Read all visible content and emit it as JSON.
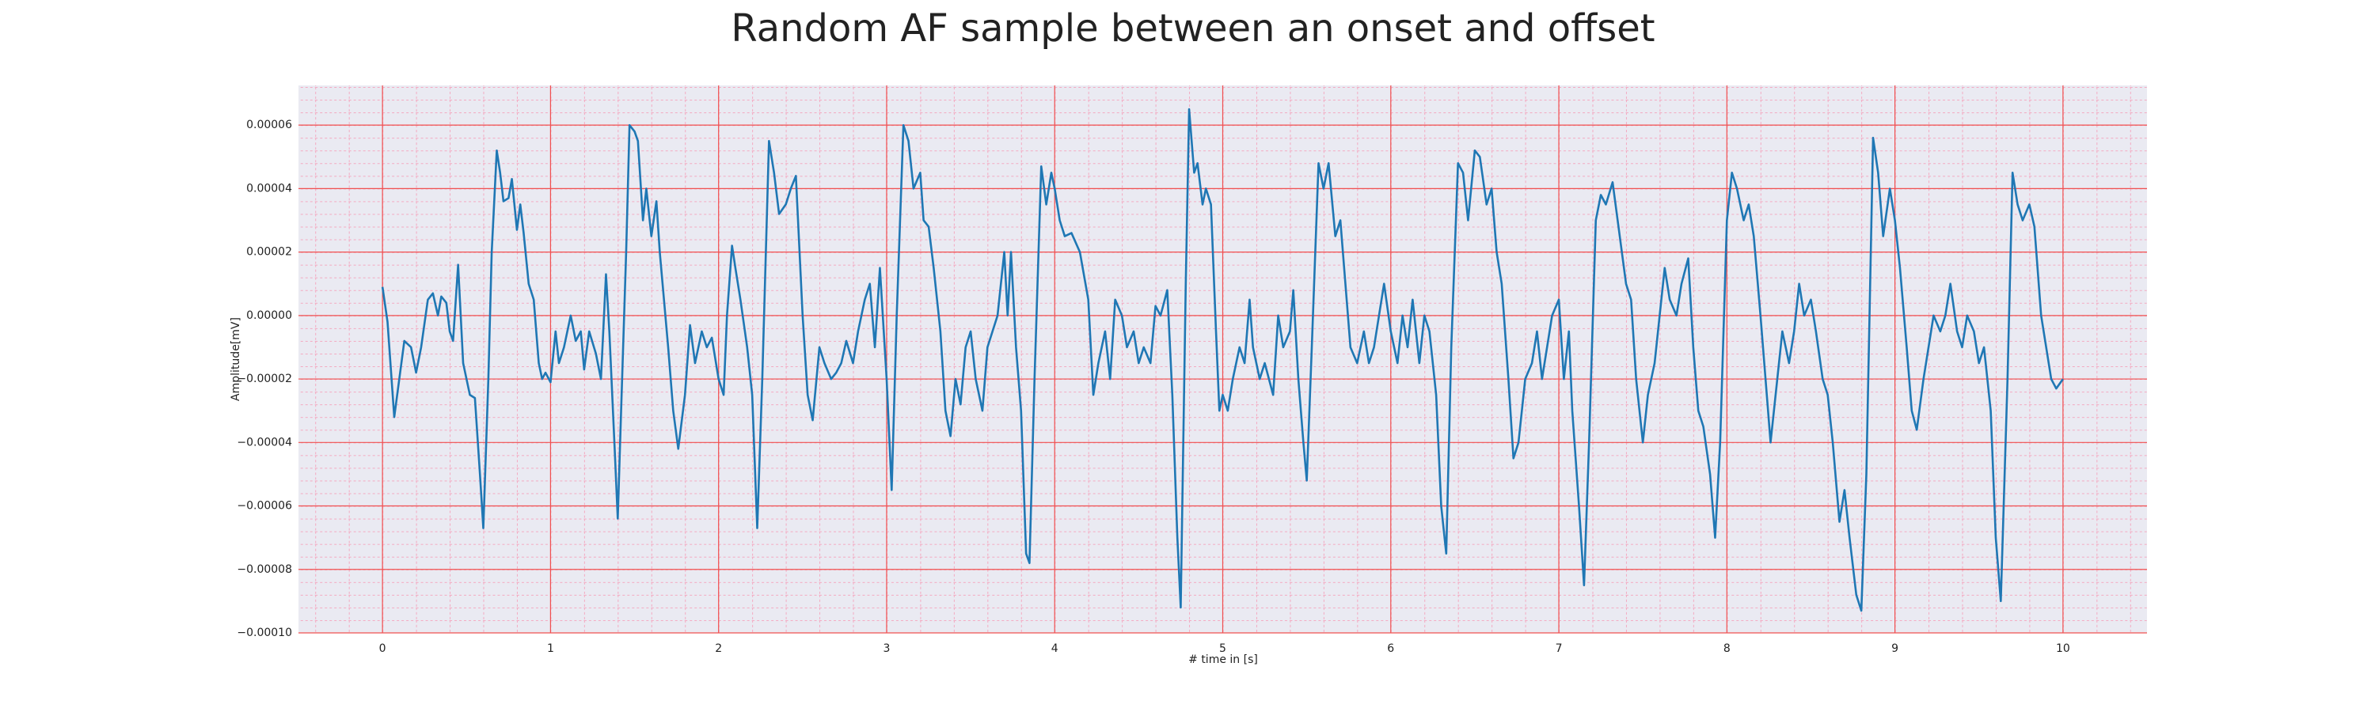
{
  "chart_data": {
    "type": "line",
    "title": "Random AF sample between an onset and offset",
    "xlabel": "# time in [s]",
    "ylabel": "Amplitude[mV]",
    "color": "#1f77b4",
    "grid": true,
    "minor_grid": true,
    "xlim": [
      -0.5,
      10.5
    ],
    "xticks": [
      0,
      1,
      2,
      3,
      4,
      5,
      6,
      7,
      8,
      9,
      10
    ],
    "ylim": [
      -0.0001,
      7.25e-05
    ],
    "yticks": [
      {
        "value": -0.0001,
        "label": "−0.00010"
      },
      {
        "value": -8e-05,
        "label": "−0.00008"
      },
      {
        "value": -6e-05,
        "label": "−0.00006"
      },
      {
        "value": -4e-05,
        "label": "−0.00004"
      },
      {
        "value": -2e-05,
        "label": "−0.00002"
      },
      {
        "value": 0,
        "label": "0.00000"
      },
      2e-05,
      4e-05,
      6e-05
    ],
    "x": [
      0,
      0.03,
      0.07,
      0.1,
      0.13,
      0.17,
      0.2,
      0.23,
      0.27,
      0.3,
      0.33,
      0.35,
      0.38,
      0.4,
      0.42,
      0.45,
      0.48,
      0.52,
      0.55,
      0.58,
      0.6,
      0.63,
      0.65,
      0.68,
      0.7,
      0.72,
      0.75,
      0.77,
      0.8,
      0.82,
      0.84,
      0.87,
      0.9,
      0.93,
      0.95,
      0.97,
      1.0,
      1.03,
      1.05,
      1.08,
      1.12,
      1.15,
      1.18,
      1.2,
      1.23,
      1.27,
      1.3,
      1.33,
      1.35,
      1.38,
      1.4,
      1.42,
      1.45,
      1.47,
      1.5,
      1.52,
      1.55,
      1.57,
      1.6,
      1.63,
      1.65,
      1.7,
      1.73,
      1.76,
      1.8,
      1.83,
      1.86,
      1.9,
      1.93,
      1.96,
      2.0,
      2.03,
      2.05,
      2.08,
      2.1,
      2.13,
      2.17,
      2.2,
      2.23,
      2.26,
      2.3,
      2.33,
      2.36,
      2.4,
      2.43,
      2.46,
      2.5,
      2.53,
      2.56,
      2.6,
      2.63,
      2.67,
      2.7,
      2.73,
      2.76,
      2.8,
      2.83,
      2.87,
      2.9,
      2.93,
      2.96,
      3.0,
      3.03,
      3.06,
      3.1,
      3.13,
      3.16,
      3.2,
      3.22,
      3.25,
      3.28,
      3.32,
      3.35,
      3.38,
      3.41,
      3.44,
      3.47,
      3.5,
      3.53,
      3.57,
      3.6,
      3.63,
      3.66,
      3.7,
      3.72,
      3.74,
      3.77,
      3.8,
      3.83,
      3.85,
      3.88,
      3.92,
      3.95,
      3.98,
      4.0,
      4.03,
      4.06,
      4.1,
      4.15,
      4.2,
      4.23,
      4.26,
      4.3,
      4.33,
      4.36,
      4.4,
      4.43,
      4.47,
      4.5,
      4.53,
      4.57,
      4.6,
      4.63,
      4.67,
      4.7,
      4.73,
      4.75,
      4.78,
      4.8,
      4.83,
      4.85,
      4.88,
      4.9,
      4.93,
      4.96,
      4.98,
      5.0,
      5.03,
      5.06,
      5.1,
      5.13,
      5.16,
      5.18,
      5.22,
      5.25,
      5.3,
      5.33,
      5.36,
      5.4,
      5.42,
      5.45,
      5.48,
      5.5,
      5.53,
      5.57,
      5.6,
      5.63,
      5.67,
      5.7,
      5.73,
      5.76,
      5.8,
      5.84,
      5.87,
      5.9,
      5.93,
      5.96,
      6.0,
      6.04,
      6.07,
      6.1,
      6.13,
      6.17,
      6.2,
      6.23,
      6.27,
      6.3,
      6.33,
      6.36,
      6.4,
      6.43,
      6.46,
      6.5,
      6.53,
      6.57,
      6.6,
      6.63,
      6.66,
      6.7,
      6.73,
      6.76,
      6.8,
      6.84,
      6.87,
      6.9,
      6.93,
      6.96,
      7.0,
      7.03,
      7.06,
      7.08,
      7.12,
      7.15,
      7.18,
      7.22,
      7.25,
      7.28,
      7.32,
      7.35,
      7.4,
      7.43,
      7.46,
      7.5,
      7.53,
      7.57,
      7.6,
      7.63,
      7.66,
      7.7,
      7.73,
      7.77,
      7.8,
      7.83,
      7.86,
      7.9,
      7.93,
      7.96,
      8.0,
      8.03,
      8.06,
      8.1,
      8.13,
      8.16,
      8.2,
      8.23,
      8.26,
      8.3,
      8.33,
      8.37,
      8.4,
      8.43,
      8.46,
      8.5,
      8.53,
      8.57,
      8.6,
      8.63,
      8.67,
      8.7,
      8.73,
      8.77,
      8.8,
      8.83,
      8.87,
      8.9,
      8.93,
      8.97,
      9.0,
      9.03,
      9.07,
      9.1,
      9.13,
      9.17,
      9.2,
      9.23,
      9.27,
      9.3,
      9.33,
      9.37,
      9.4,
      9.43,
      9.47,
      9.5,
      9.53,
      9.57,
      9.6,
      9.63,
      9.67,
      9.7,
      9.73,
      9.76,
      9.8,
      9.83,
      9.87,
      9.9,
      9.93,
      9.96,
      10.0
    ],
    "values": [
      9e-06,
      -2e-06,
      -3.2e-05,
      -2e-05,
      -8e-06,
      -1e-05,
      -1.8e-05,
      -1e-05,
      5e-06,
      7e-06,
      0,
      6e-06,
      4e-06,
      -5e-06,
      -8e-06,
      1.6e-05,
      -1.5e-05,
      -2.5e-05,
      -2.6e-05,
      -5e-05,
      -6.7e-05,
      -2e-05,
      2e-05,
      5.2e-05,
      4.5e-05,
      3.6e-05,
      3.7e-05,
      4.3e-05,
      2.7e-05,
      3.5e-05,
      2.6e-05,
      1e-05,
      5e-06,
      -1.5e-05,
      -2e-05,
      -1.8e-05,
      -2.1e-05,
      -5e-06,
      -1.5e-05,
      -1e-05,
      0,
      -8e-06,
      -5e-06,
      -1.7e-05,
      -5e-06,
      -1.2e-05,
      -2e-05,
      1.3e-05,
      -5e-06,
      -4e-05,
      -6.4e-05,
      -3e-05,
      2e-05,
      6e-05,
      5.8e-05,
      5.5e-05,
      3e-05,
      4e-05,
      2.5e-05,
      3.6e-05,
      2e-05,
      -1e-05,
      -3e-05,
      -4.2e-05,
      -2.5e-05,
      -3e-06,
      -1.5e-05,
      -5e-06,
      -1e-05,
      -7e-06,
      -2e-05,
      -2.5e-05,
      0,
      2.2e-05,
      1.5e-05,
      5e-06,
      -1e-05,
      -2.5e-05,
      -6.7e-05,
      -2e-05,
      5.5e-05,
      4.5e-05,
      3.2e-05,
      3.5e-05,
      4e-05,
      4.4e-05,
      0,
      -2.5e-05,
      -3.3e-05,
      -1e-05,
      -1.5e-05,
      -2e-05,
      -1.8e-05,
      -1.5e-05,
      -8e-06,
      -1.5e-05,
      -5e-06,
      5e-06,
      1e-05,
      -1e-05,
      1.5e-05,
      -2e-05,
      -5.5e-05,
      0,
      6e-05,
      5.5e-05,
      4e-05,
      4.5e-05,
      3e-05,
      2.8e-05,
      1.5e-05,
      -5e-06,
      -3e-05,
      -3.8e-05,
      -2e-05,
      -2.8e-05,
      -1e-05,
      -5e-06,
      -2e-05,
      -3e-05,
      -1e-05,
      -5e-06,
      0,
      2e-05,
      0,
      2e-05,
      -1e-05,
      -3e-05,
      -7.5e-05,
      -7.8e-05,
      -2e-05,
      4.7e-05,
      3.5e-05,
      4.5e-05,
      4e-05,
      3e-05,
      2.5e-05,
      2.6e-05,
      2e-05,
      5e-06,
      -2.5e-05,
      -1.5e-05,
      -5e-06,
      -2e-05,
      5e-06,
      0,
      -1e-05,
      -5e-06,
      -1.5e-05,
      -1e-05,
      -1.5e-05,
      3e-06,
      0,
      8e-06,
      -2.5e-05,
      -7e-05,
      -9.2e-05,
      1e-05,
      6.5e-05,
      4.5e-05,
      4.8e-05,
      3.5e-05,
      4e-05,
      3.5e-05,
      -5e-06,
      -3e-05,
      -2.5e-05,
      -3e-05,
      -2e-05,
      -1e-05,
      -1.5e-05,
      5e-06,
      -1e-05,
      -2e-05,
      -1.5e-05,
      -2.5e-05,
      0,
      -1e-05,
      -5e-06,
      8e-06,
      -2e-05,
      -4e-05,
      -5.2e-05,
      -1e-05,
      4.8e-05,
      4e-05,
      4.8e-05,
      2.5e-05,
      3e-05,
      1e-05,
      -1e-05,
      -1.5e-05,
      -5e-06,
      -1.5e-05,
      -1e-05,
      0,
      1e-05,
      -5e-06,
      -1.5e-05,
      0,
      -1e-05,
      5e-06,
      -1.5e-05,
      0,
      -5e-06,
      -2.5e-05,
      -6e-05,
      -7.5e-05,
      -1e-05,
      4.8e-05,
      4.5e-05,
      3e-05,
      5.2e-05,
      5e-05,
      3.5e-05,
      4e-05,
      2e-05,
      1e-05,
      -2e-05,
      -4.5e-05,
      -4e-05,
      -2e-05,
      -1.5e-05,
      -5e-06,
      -2e-05,
      -1e-05,
      0,
      5e-06,
      -2e-05,
      -5e-06,
      -3e-05,
      -6e-05,
      -8.5e-05,
      -4e-05,
      3e-05,
      3.8e-05,
      3.5e-05,
      4.2e-05,
      3e-05,
      1e-05,
      5e-06,
      -2e-05,
      -4e-05,
      -2.5e-05,
      -1.5e-05,
      0,
      1.5e-05,
      5e-06,
      0,
      1e-05,
      1.8e-05,
      -1e-05,
      -3e-05,
      -3.5e-05,
      -5e-05,
      -7e-05,
      -4e-05,
      3e-05,
      4.5e-05,
      4e-05,
      3e-05,
      3.5e-05,
      2.5e-05,
      0,
      -2e-05,
      -4e-05,
      -2e-05,
      -5e-06,
      -1.5e-05,
      -5e-06,
      1e-05,
      0,
      5e-06,
      -5e-06,
      -2e-05,
      -2.5e-05,
      -4e-05,
      -6.5e-05,
      -5.5e-05,
      -7e-05,
      -8.8e-05,
      -9.3e-05,
      -5e-05,
      5.6e-05,
      4.5e-05,
      2.5e-05,
      4e-05,
      3e-05,
      1.5e-05,
      -1e-05,
      -3e-05,
      -3.6e-05,
      -2e-05,
      -1e-05,
      0,
      -5e-06,
      0,
      1e-05,
      -5e-06,
      -1e-05,
      0,
      -5e-06,
      -1.5e-05,
      -1e-05,
      -3e-05,
      -7e-05,
      -9e-05,
      -2e-05,
      4.5e-05,
      3.5e-05,
      3e-05,
      3.5e-05,
      2.8e-05,
      0,
      -1e-05,
      -2e-05,
      -2.3e-05,
      -2e-05
    ]
  }
}
